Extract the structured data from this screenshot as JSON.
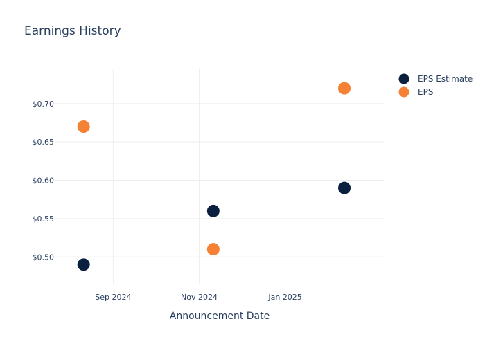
{
  "chart_data": {
    "type": "scatter",
    "title": "Earnings History",
    "xlabel": "Announcement Date",
    "ylabel": "",
    "x_ticks": [
      {
        "date": "2024-09-01",
        "label": "Sep 2024"
      },
      {
        "date": "2024-11-01",
        "label": "Nov 2024"
      },
      {
        "date": "2025-01-01",
        "label": "Jan 2025"
      }
    ],
    "xlim": [
      "2024-07-22",
      "2025-03-12"
    ],
    "y_ticks": [
      {
        "value": 0.5,
        "label": "$0.50"
      },
      {
        "value": 0.55,
        "label": "$0.55"
      },
      {
        "value": 0.6,
        "label": "$0.60"
      },
      {
        "value": 0.65,
        "label": "$0.65"
      },
      {
        "value": 0.7,
        "label": "$0.70"
      }
    ],
    "ylim": [
      0.465,
      0.745
    ],
    "grid": true,
    "legend_position": "top-right",
    "series": [
      {
        "name": "EPS Estimate",
        "color": "#0b1f3f",
        "points": [
          {
            "x": "2024-08-11",
            "y": 0.49
          },
          {
            "x": "2024-11-11",
            "y": 0.56
          },
          {
            "x": "2025-02-12",
            "y": 0.59
          }
        ]
      },
      {
        "name": "EPS",
        "color": "#f58234",
        "points": [
          {
            "x": "2024-08-11",
            "y": 0.67
          },
          {
            "x": "2024-11-11",
            "y": 0.51
          },
          {
            "x": "2025-02-12",
            "y": 0.72
          }
        ]
      }
    ]
  }
}
